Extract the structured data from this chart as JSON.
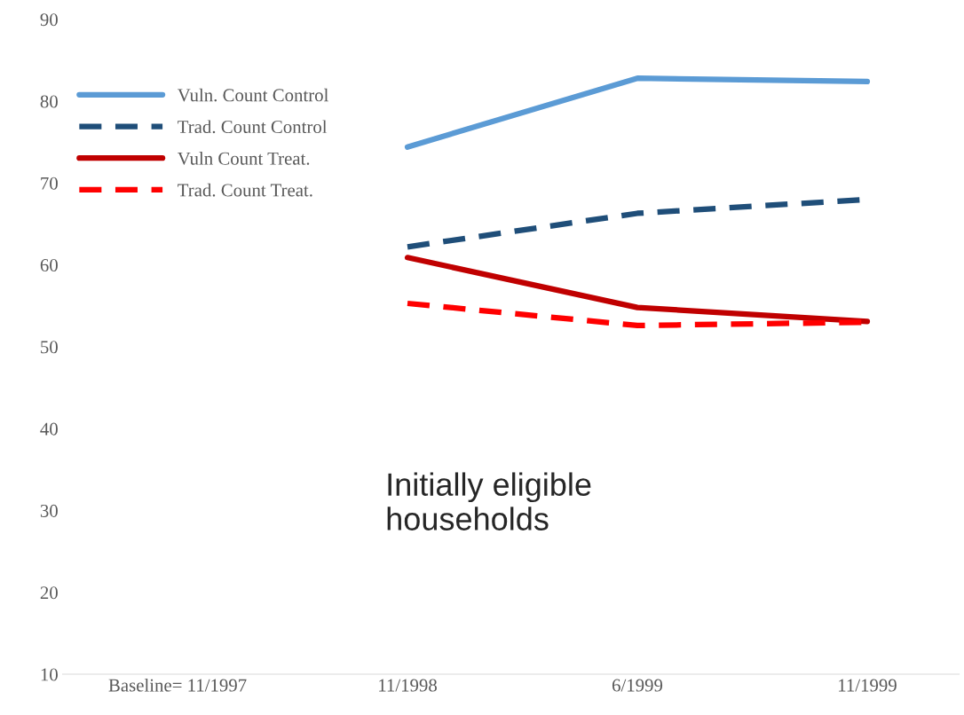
{
  "chart_data": {
    "type": "line",
    "categories": [
      "Baseline= 11/1997",
      "11/1998",
      "6/1999",
      "11/1999"
    ],
    "series": [
      {
        "name": "Vuln. Count Control",
        "color": "#5b9bd5",
        "line_style": "solid",
        "values": [
          null,
          74.4,
          82.8,
          82.4
        ]
      },
      {
        "name": "Trad. Count Control",
        "color": "#1f4e79",
        "line_style": "dashed",
        "values": [
          null,
          62.2,
          66.3,
          68.0
        ]
      },
      {
        "name": "Vuln Count Treat.",
        "color": "#c00000",
        "line_style": "solid",
        "values": [
          null,
          60.9,
          54.8,
          53.1
        ]
      },
      {
        "name": "Trad. Count Treat.",
        "color": "#ff0000",
        "line_style": "dashed",
        "values": [
          null,
          55.3,
          52.6,
          53.0
        ]
      }
    ],
    "ylim": [
      10,
      90
    ],
    "yticks": [
      10,
      20,
      30,
      40,
      50,
      60,
      70,
      80,
      90
    ],
    "grid": false,
    "legend": "top left",
    "annotations": [
      "Initially eligible\nhouseholds"
    ]
  }
}
